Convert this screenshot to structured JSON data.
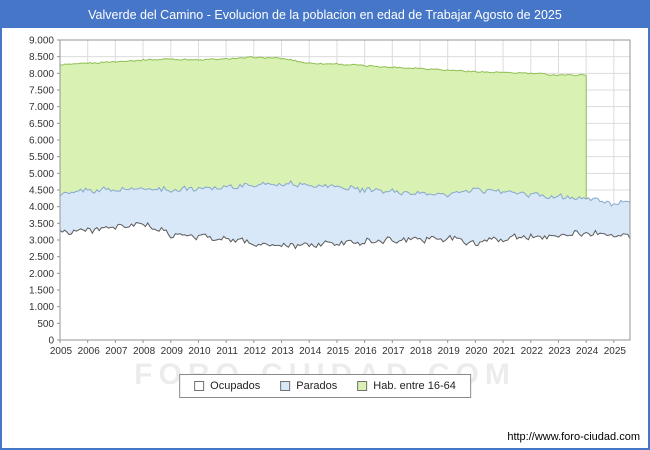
{
  "title": "Valverde del Camino - Evolucion de la poblacion en edad de Trabajar Agosto de 2025",
  "watermark": "FORO-CIUDAD.COM",
  "footer": {
    "url": "http://www.foro-ciudad.com"
  },
  "colors": {
    "titlebar": "#4676c8",
    "frame_border": "#4676c8",
    "grid": "#dcdcdc",
    "plot_border": "#969696",
    "axis_text": "#333333"
  },
  "legend": {
    "items": [
      {
        "label": "Ocupados",
        "swatch_style": "background:#ffffff;border:1px solid #707070"
      },
      {
        "label": "Parados",
        "swatch_style": "background:#d9e8f8;border:1px solid #707070"
      },
      {
        "label": "Hab. entre 16-64",
        "swatch_style": "background:#d9f2b4;border:1px solid #707070"
      }
    ]
  },
  "chart_data": {
    "type": "area",
    "title": "Valverde del Camino - Evolucion de la poblacion en edad de Trabajar Agosto de 2025",
    "xlabel": "",
    "ylabel": "",
    "x_years": [
      2005,
      2006,
      2007,
      2008,
      2009,
      2010,
      2011,
      2012,
      2013,
      2014,
      2015,
      2016,
      2017,
      2018,
      2019,
      2020,
      2021,
      2022,
      2023,
      2024,
      2025
    ],
    "x_resolution": "monthly",
    "x_last_month": "2025-08",
    "ylim": [
      0,
      9000
    ],
    "ytick_step": 500,
    "grid": true,
    "legend_position": "bottom",
    "series": [
      {
        "name": "Hab. entre 16-64",
        "fill": "#d9f2b4",
        "stroke": "#8fbf52",
        "yearly_values": [
          8250,
          8300,
          8350,
          8400,
          8430,
          8400,
          8430,
          8480,
          8450,
          8300,
          8280,
          8230,
          8180,
          8150,
          8100,
          8050,
          8020,
          8000,
          7950,
          7950,
          null
        ],
        "data_end": "2024-01",
        "jitter": 20
      },
      {
        "name": "Parados",
        "fill": "#d9e8f8",
        "stroke": "#86a7ce",
        "yearly_values": [
          4350,
          4500,
          4500,
          4550,
          4500,
          4550,
          4600,
          4650,
          4700,
          4650,
          4600,
          4500,
          4450,
          4400,
          4350,
          4500,
          4450,
          4350,
          4300,
          4250,
          4100
        ],
        "data_end": null,
        "jitter": 70
      },
      {
        "name": "Ocupados",
        "fill": "#ffffff",
        "stroke": "#5a5a5a",
        "yearly_values": [
          3250,
          3300,
          3350,
          3500,
          3150,
          3100,
          3050,
          2900,
          2800,
          2850,
          2900,
          2950,
          3000,
          3000,
          3050,
          2900,
          3050,
          3100,
          3150,
          3200,
          3150
        ],
        "data_end": null,
        "jitter": 85
      }
    ]
  }
}
